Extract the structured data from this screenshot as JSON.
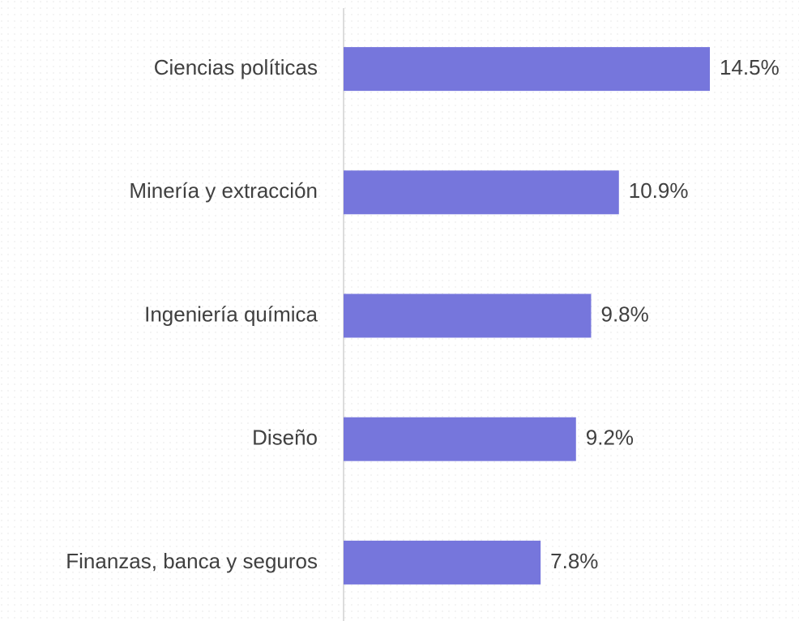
{
  "chart_data": {
    "type": "hbar",
    "categories": [
      "Ciencias políticas",
      "Minería y extracción",
      "Ingeniería química",
      "Diseño",
      "Finanzas, banca y seguros"
    ],
    "values": [
      14.5,
      10.9,
      9.8,
      9.2,
      7.8
    ],
    "value_labels": [
      "14.5%",
      "10.9%",
      "9.8%",
      "9.2%",
      "7.8%"
    ],
    "color": "#7676dc"
  }
}
